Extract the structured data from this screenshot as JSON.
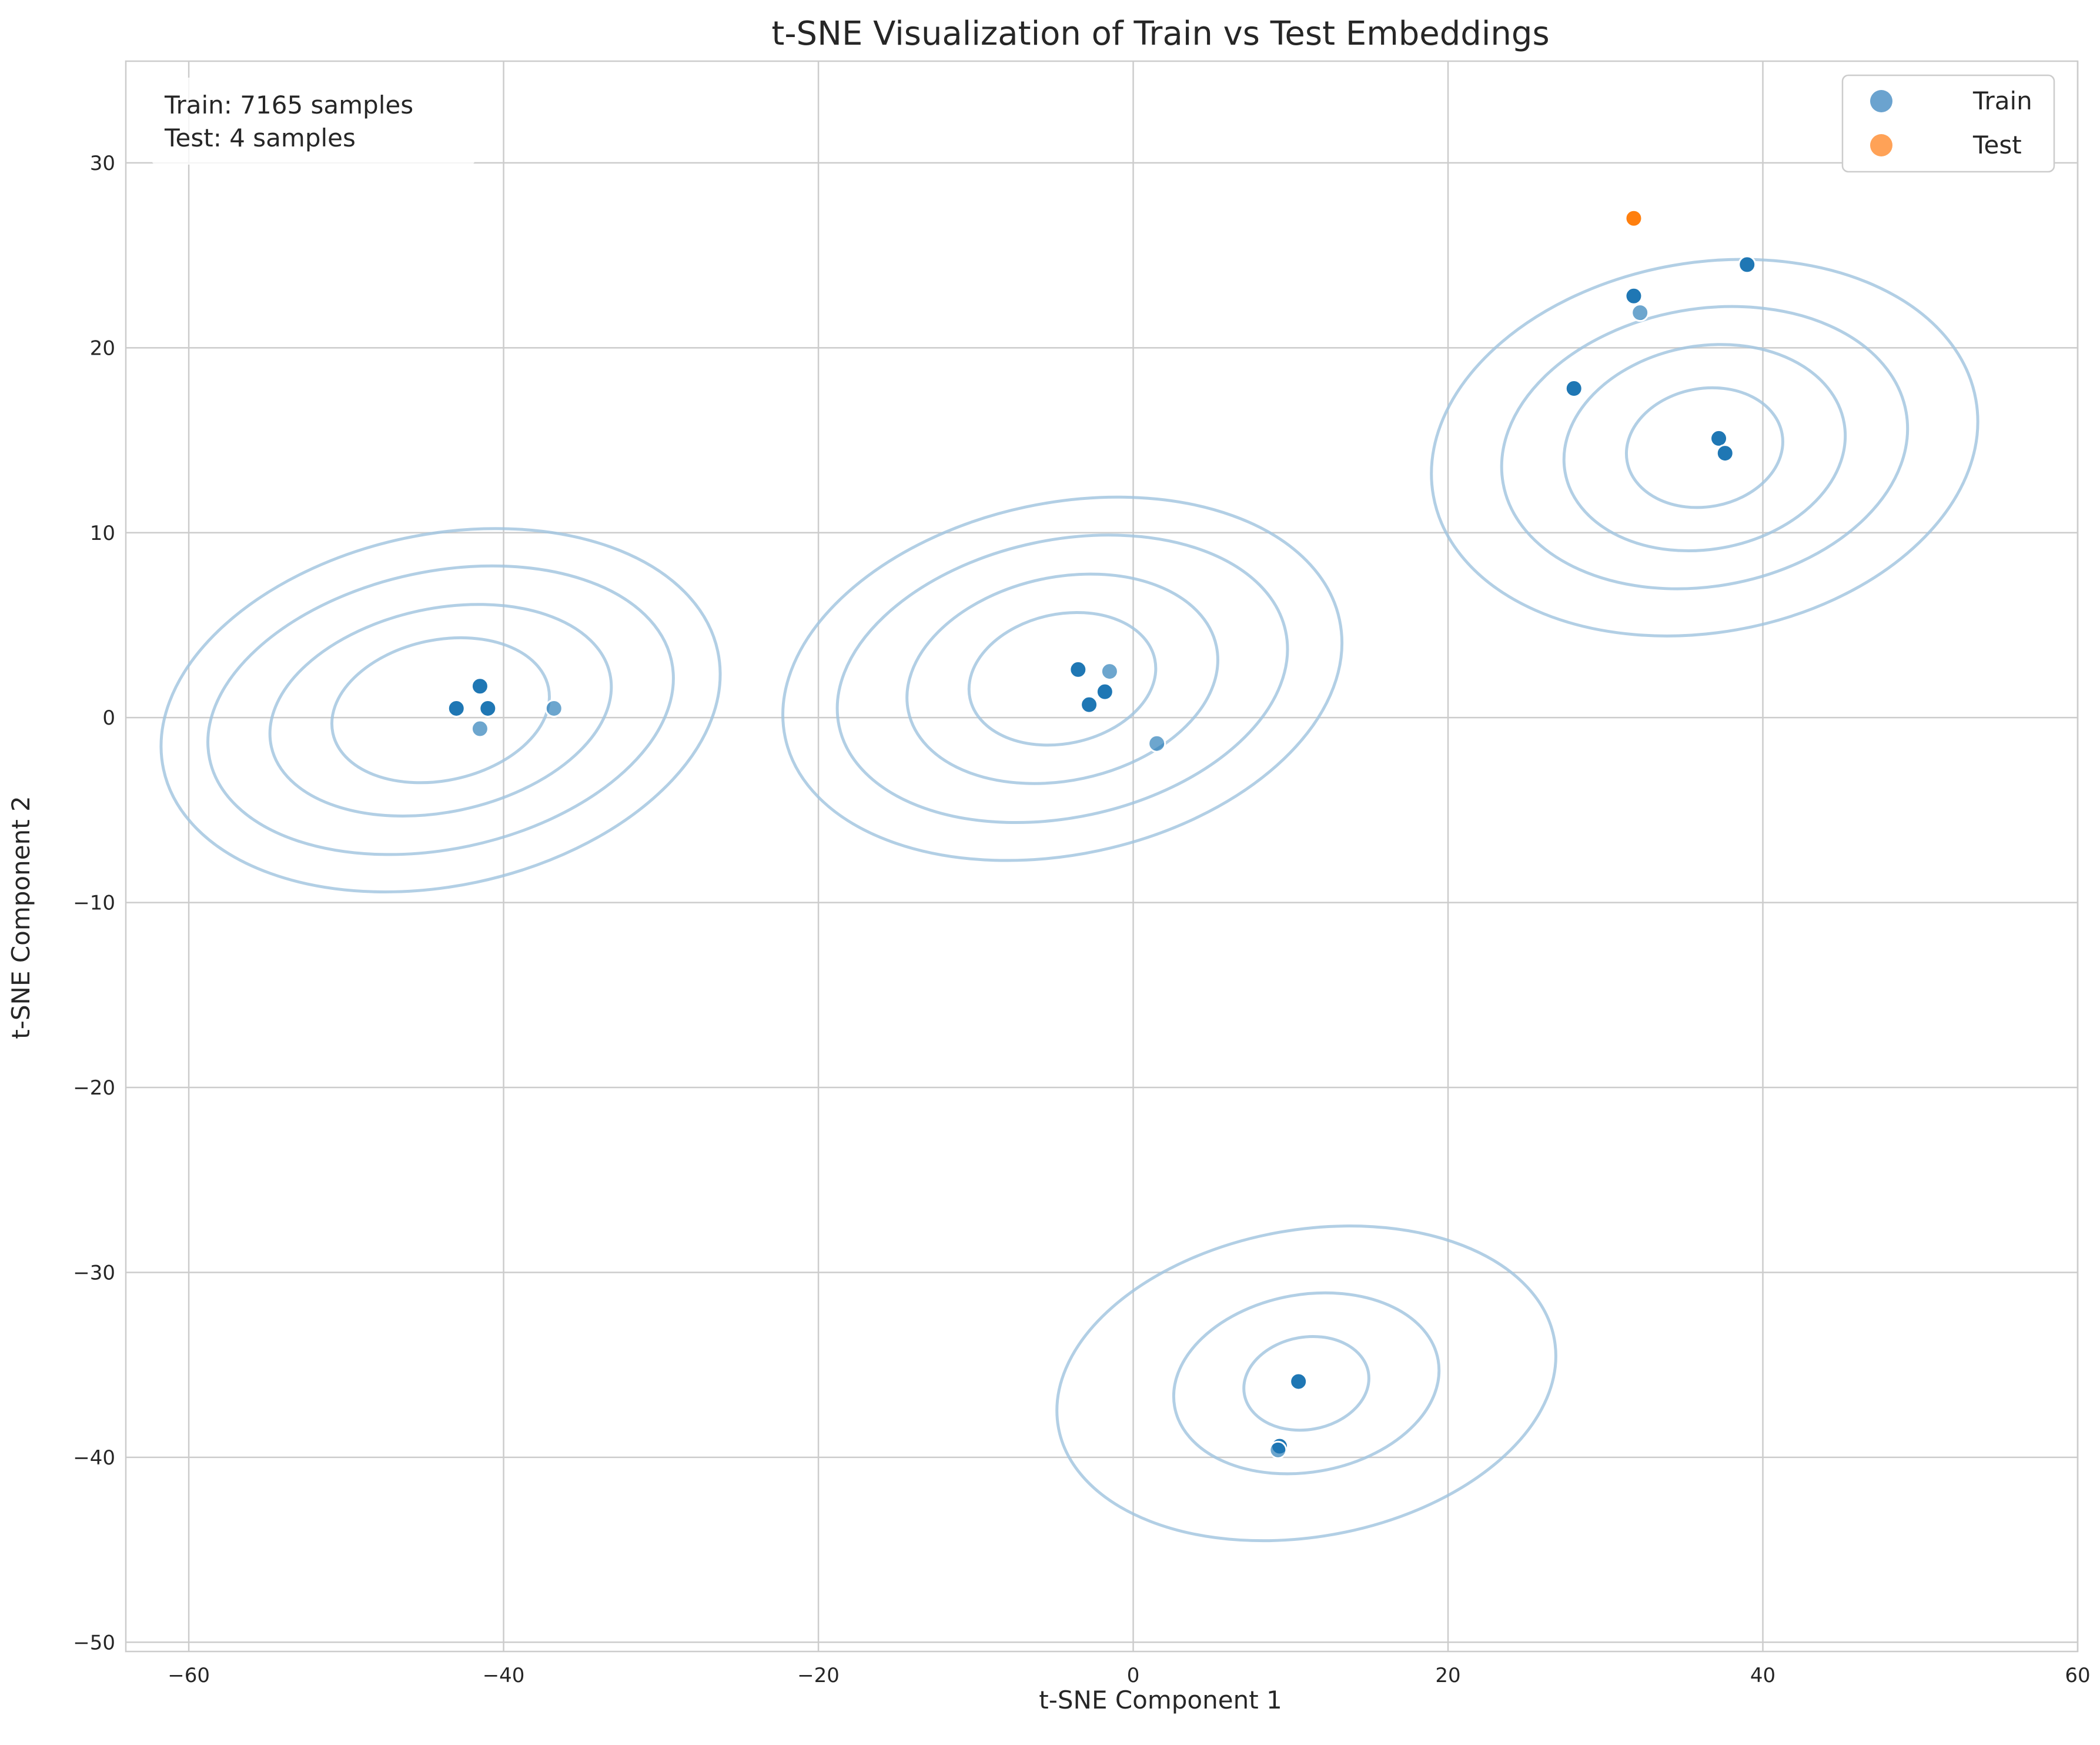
{
  "chart_data": {
    "type": "scatter",
    "title": "t-SNE Visualization of Train vs Test Embeddings",
    "xlabel": "t-SNE Component 1",
    "ylabel": "t-SNE Component 2",
    "xlim": [
      -64,
      60
    ],
    "ylim": [
      -50.5,
      35.5
    ],
    "xticks": [
      -60,
      -40,
      -20,
      0,
      20,
      40,
      60
    ],
    "yticks": [
      -50,
      -40,
      -30,
      -20,
      -10,
      0,
      10,
      20,
      30
    ],
    "xtick_labels": [
      "−60",
      "−40",
      "−20",
      "0",
      "20",
      "40",
      "60"
    ],
    "ytick_labels": [
      "−50",
      "−40",
      "−30",
      "−20",
      "−10",
      "0",
      "10",
      "20",
      "30"
    ],
    "grid": true,
    "legend_position": "top-right",
    "annotation": {
      "lines": [
        "Train: 7165 samples",
        "Test: 4 samples"
      ],
      "position": "top-left"
    },
    "series": [
      {
        "name": "Train",
        "color": "#1f77b4",
        "legend_color": "#6ba3cf",
        "points": [
          {
            "x": -43.0,
            "y": 0.5,
            "alpha": 1.0
          },
          {
            "x": -41.5,
            "y": 1.7,
            "alpha": 1.0
          },
          {
            "x": -41.0,
            "y": 0.5,
            "alpha": 1.0
          },
          {
            "x": -41.5,
            "y": -0.6,
            "alpha": 0.65
          },
          {
            "x": -36.8,
            "y": 0.5,
            "alpha": 0.65
          },
          {
            "x": -3.5,
            "y": 2.6,
            "alpha": 1.0
          },
          {
            "x": -1.5,
            "y": 2.5,
            "alpha": 0.65
          },
          {
            "x": -1.8,
            "y": 1.4,
            "alpha": 1.0
          },
          {
            "x": -2.8,
            "y": 0.7,
            "alpha": 1.0
          },
          {
            "x": 1.5,
            "y": -1.4,
            "alpha": 0.65
          },
          {
            "x": 10.5,
            "y": -35.9,
            "alpha": 1.0
          },
          {
            "x": 9.3,
            "y": -39.4,
            "alpha": 1.0
          },
          {
            "x": 9.2,
            "y": -39.6,
            "alpha": 0.65
          },
          {
            "x": 28.0,
            "y": 17.8,
            "alpha": 1.0
          },
          {
            "x": 31.8,
            "y": 22.8,
            "alpha": 1.0
          },
          {
            "x": 32.2,
            "y": 21.9,
            "alpha": 0.65
          },
          {
            "x": 39.0,
            "y": 24.5,
            "alpha": 1.0
          },
          {
            "x": 37.2,
            "y": 15.1,
            "alpha": 1.0
          },
          {
            "x": 37.6,
            "y": 14.3,
            "alpha": 1.0
          }
        ]
      },
      {
        "name": "Test",
        "color": "#ff7f0e",
        "legend_color": "#ffa257",
        "points": [
          {
            "x": 31.8,
            "y": 27.0,
            "alpha": 1.0
          }
        ]
      }
    ],
    "kde_contours": {
      "color": "#9fc3de",
      "clusters": [
        {
          "cx": -44.0,
          "cy": 0.4,
          "rx_levels": [
            7,
            11,
            15,
            18
          ],
          "ry_levels": [
            3.8,
            5.5,
            7.5,
            9.5
          ],
          "tilt": 12
        },
        {
          "cx": -4.5,
          "cy": 2.1,
          "rx_levels": [
            6,
            10,
            14.5,
            18
          ],
          "ry_levels": [
            3.5,
            5.5,
            7.5,
            9.5
          ],
          "tilt": 12
        },
        {
          "cx": 36.3,
          "cy": 14.6,
          "rx_levels": [
            5,
            9,
            13,
            17.5
          ],
          "ry_levels": [
            3.2,
            5.5,
            7.5,
            10
          ],
          "tilt": 10
        },
        {
          "cx": 11.0,
          "cy": -36.0,
          "rx_levels": [
            4,
            8.5,
            16
          ],
          "ry_levels": [
            2.5,
            4.8,
            8.3
          ],
          "tilt": 10
        }
      ]
    }
  }
}
